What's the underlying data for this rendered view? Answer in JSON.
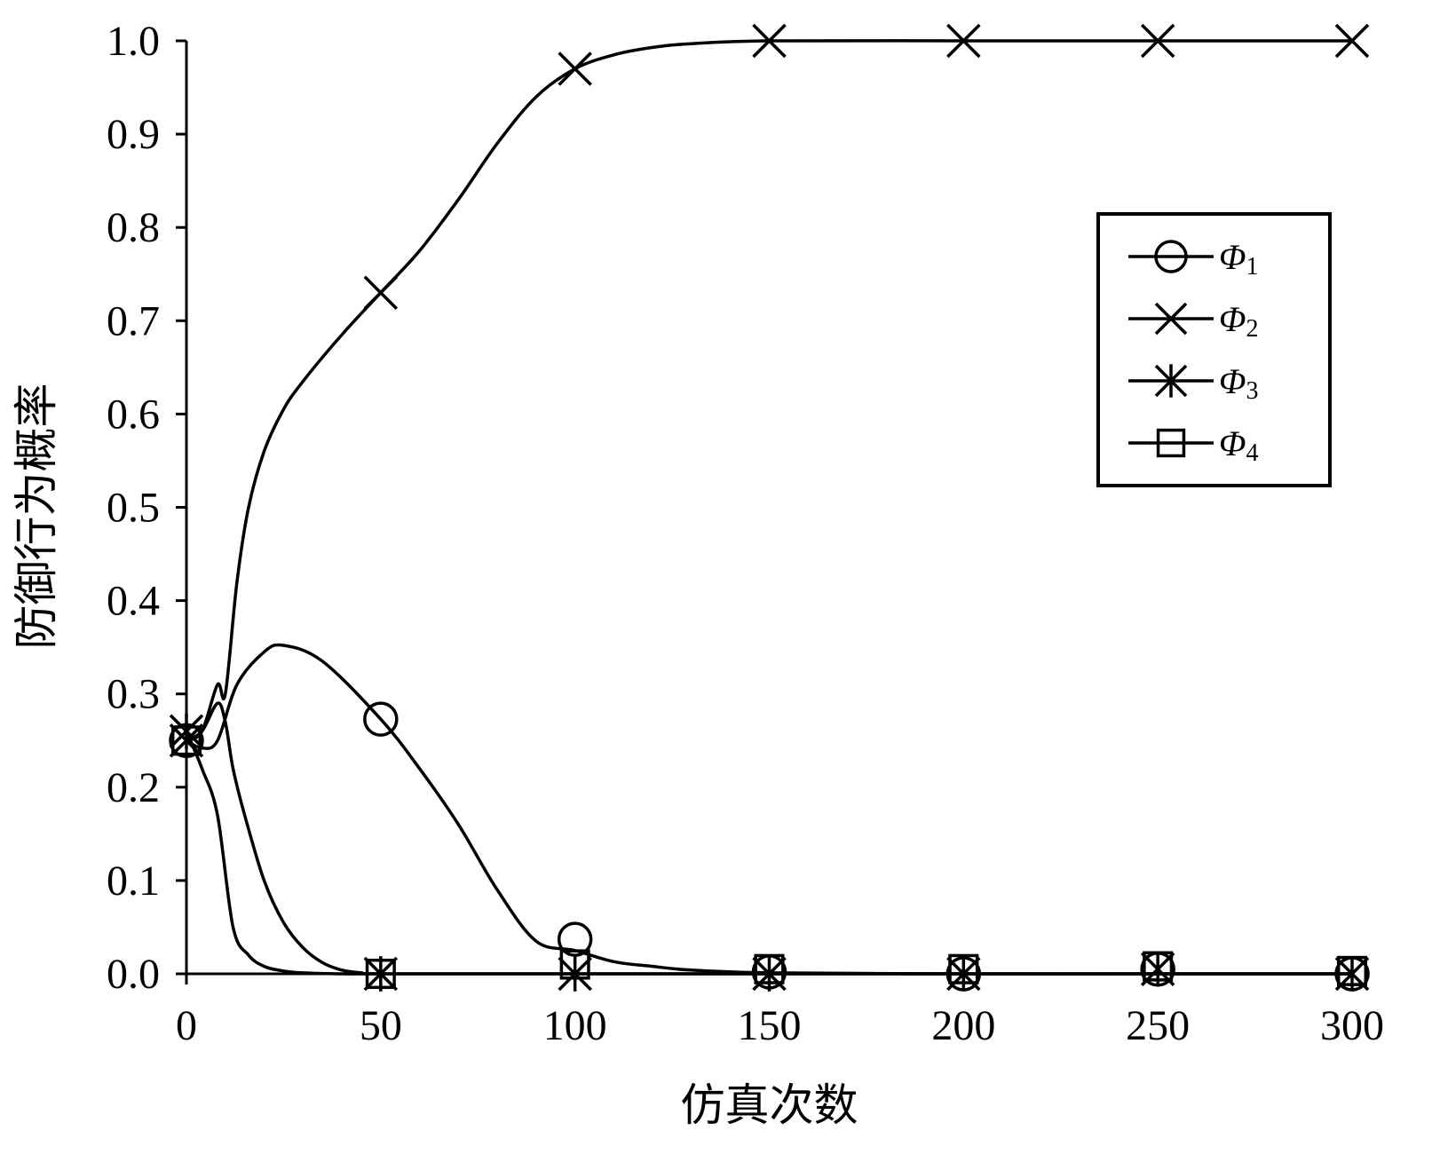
{
  "chart_data": {
    "type": "line",
    "xlabel": "仿真次数",
    "ylabel": "防御行为概率",
    "xlim": [
      0,
      300
    ],
    "ylim": [
      0,
      1.0
    ],
    "x_ticks": [
      "0",
      "50",
      "100",
      "150",
      "200",
      "250",
      "300"
    ],
    "y_ticks": [
      "0.0",
      "0.1",
      "0.2",
      "0.3",
      "0.4",
      "0.5",
      "0.6",
      "0.7",
      "0.8",
      "0.9",
      "1.0"
    ],
    "legend_position": "top-right",
    "grid": false,
    "marker_x": [
      0,
      50,
      100,
      150,
      200,
      250,
      300
    ],
    "series": [
      {
        "name": "Φ1",
        "name_base": "Φ",
        "name_sub": "1",
        "marker": "circle",
        "marker_values": [
          0.25,
          0.273,
          0.037,
          0.002,
          0.0,
          0.005,
          0.0
        ],
        "curve_x": [
          0,
          4,
          8,
          13,
          20,
          25,
          35,
          50,
          60,
          70,
          80,
          90,
          100,
          110,
          120,
          130,
          150,
          200,
          250,
          300
        ],
        "curve_y": [
          0.25,
          0.242,
          0.25,
          0.31,
          0.345,
          0.352,
          0.335,
          0.273,
          0.22,
          0.16,
          0.09,
          0.035,
          0.025,
          0.013,
          0.008,
          0.004,
          0.001,
          0.0,
          0.0,
          0.0
        ]
      },
      {
        "name": "Φ2",
        "name_base": "Φ",
        "name_sub": "2",
        "marker": "x",
        "marker_values": [
          0.25,
          0.73,
          0.97,
          1.0,
          1.0,
          1.0,
          1.0
        ],
        "curve_x": [
          0,
          4,
          8,
          10,
          13,
          16,
          20,
          25,
          30,
          40,
          50,
          60,
          70,
          80,
          90,
          100,
          110,
          120,
          130,
          150,
          200,
          250,
          300
        ],
        "curve_y": [
          0.25,
          0.26,
          0.31,
          0.3,
          0.42,
          0.5,
          0.56,
          0.605,
          0.635,
          0.685,
          0.73,
          0.775,
          0.83,
          0.89,
          0.94,
          0.97,
          0.985,
          0.993,
          0.997,
          1.0,
          1.0,
          1.0,
          1.0
        ]
      },
      {
        "name": "Φ3",
        "name_base": "Φ",
        "name_sub": "3",
        "marker": "asterisk",
        "marker_values": [
          0.26,
          0.0,
          0.0,
          0.0,
          0.0,
          0.005,
          0.0
        ],
        "curve_x": [
          0,
          4,
          8,
          12,
          16,
          20,
          25,
          30,
          40,
          50,
          100,
          150,
          200,
          250,
          300
        ],
        "curve_y": [
          0.26,
          0.22,
          0.17,
          0.05,
          0.02,
          0.008,
          0.003,
          0.001,
          0.0,
          0.0,
          0.0,
          0.0,
          0.0,
          0.0,
          0.0
        ]
      },
      {
        "name": "Φ4",
        "name_base": "Φ",
        "name_sub": "4",
        "marker": "square",
        "marker_values": [
          0.25,
          0.0,
          0.01,
          0.005,
          0.005,
          0.008,
          0.003
        ],
        "curve_x": [
          0,
          4,
          8,
          10,
          12,
          15,
          20,
          25,
          30,
          35,
          40,
          45,
          50,
          100,
          150,
          200,
          250,
          300
        ],
        "curve_y": [
          0.25,
          0.26,
          0.29,
          0.27,
          0.22,
          0.17,
          0.1,
          0.055,
          0.028,
          0.012,
          0.004,
          0.001,
          0.0,
          0.0,
          0.0,
          0.0,
          0.0,
          0.0
        ]
      }
    ]
  }
}
